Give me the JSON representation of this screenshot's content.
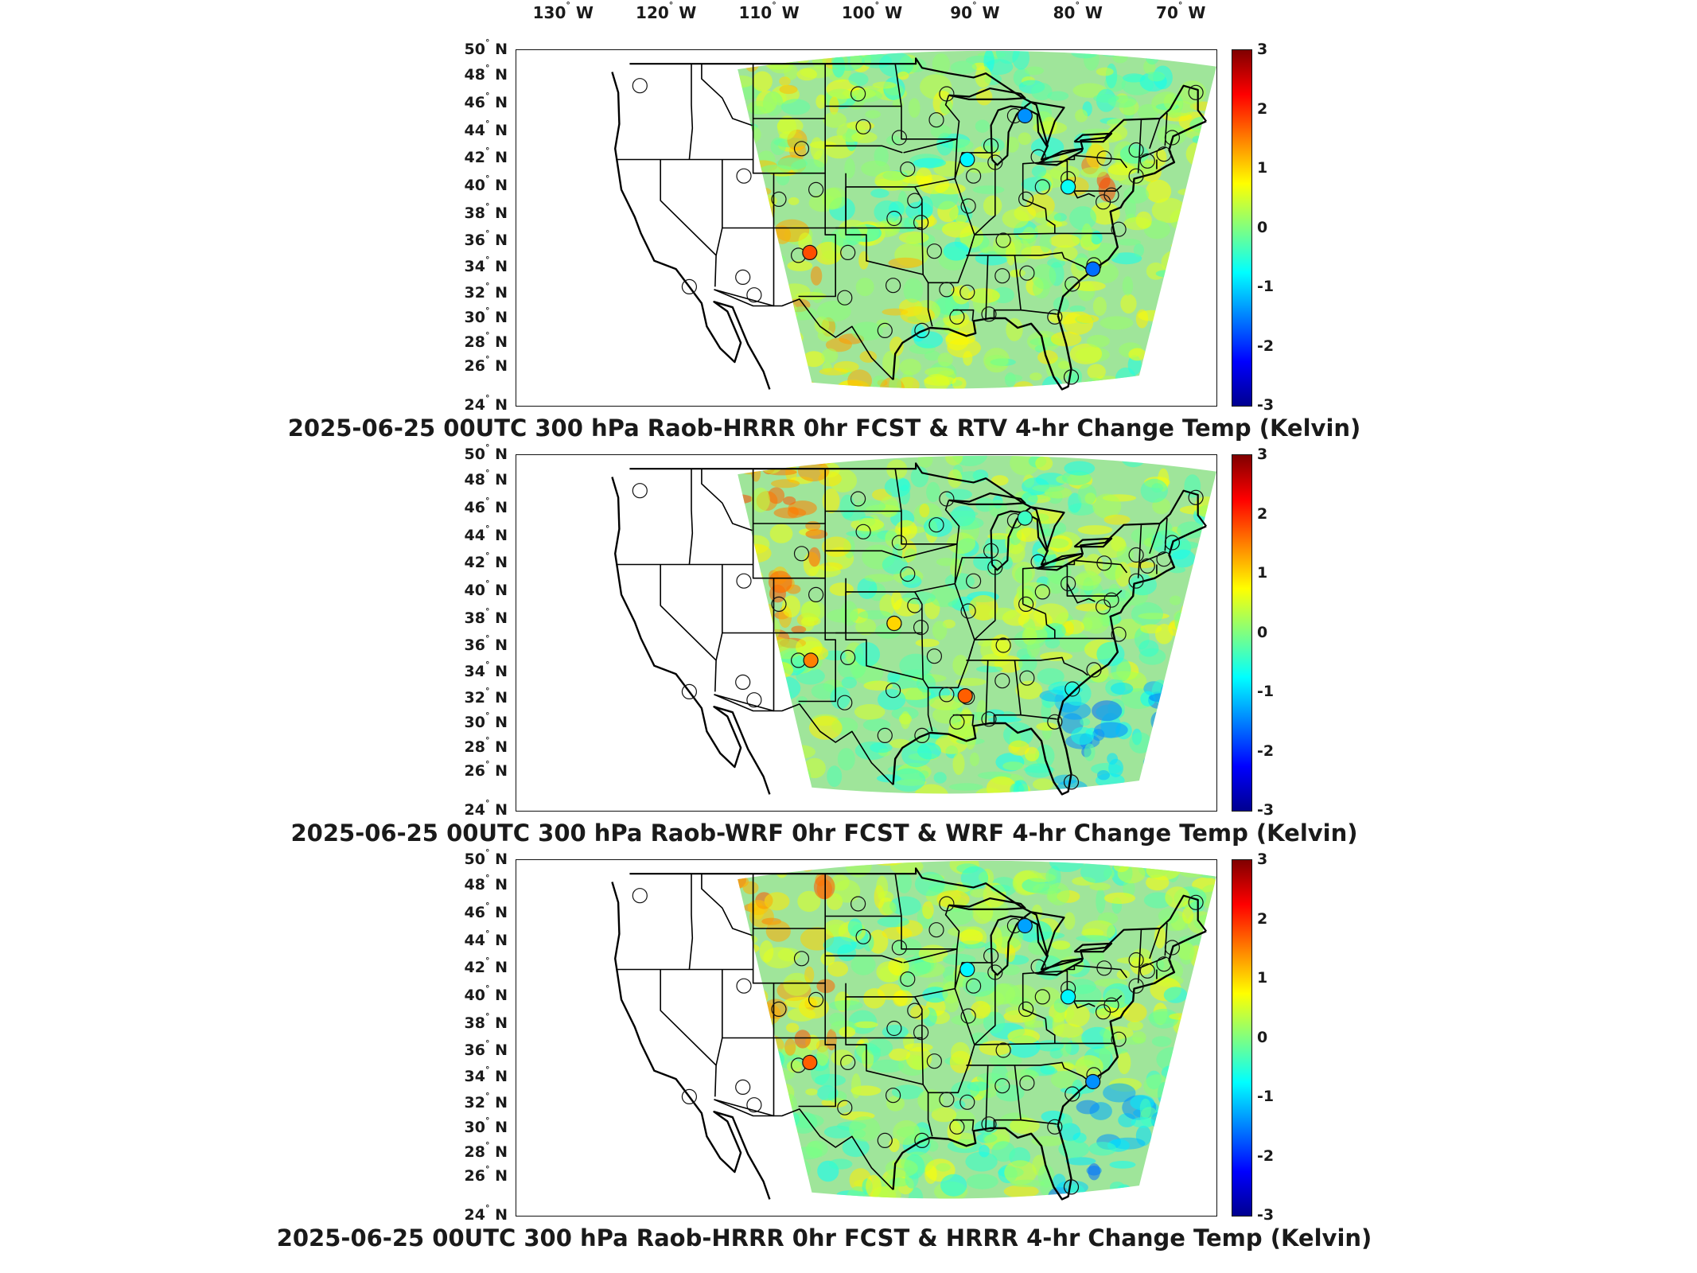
{
  "figure": {
    "longitude_labels": [
      "130° W",
      "120° W",
      "110° W",
      "100° W",
      "90° W",
      "80° W",
      "70° W"
    ],
    "latitude_labels": [
      "50° N",
      "48° N",
      "46° N",
      "44° N",
      "42° N",
      "40° N",
      "38° N",
      "36° N",
      "34° N",
      "32° N",
      "30° N",
      "28° N",
      "26° N",
      "24° N"
    ],
    "colorbar": {
      "ticks": [
        "3",
        "2",
        "1",
        "0",
        "-1",
        "-2",
        "-3"
      ],
      "range": [
        -3,
        3
      ],
      "colormap": [
        "#00008f",
        "#0000ff",
        "#0080ff",
        "#00ffff",
        "#80ff80",
        "#ffff00",
        "#ff8000",
        "#ff0000",
        "#800000"
      ]
    },
    "colors": {
      "background_field": "#9fe59a",
      "coast_and_borders": "#000000"
    },
    "panels": [
      {
        "title": "2025-06-25 00UTC 300 hPa Raob-HRRR 0hr FCST & RTV 4-hr Change Temp (Kelvin)",
        "station_markers": [
          {
            "lon": -84.6,
            "lat": 45.2,
            "value": -1.4
          },
          {
            "lon": -105.5,
            "lat": 35.2,
            "value": 1.8
          },
          {
            "lon": -78.0,
            "lat": 34.0,
            "value": -1.6
          },
          {
            "lon": -80.4,
            "lat": 40.0,
            "value": -0.7
          },
          {
            "lon": -90.2,
            "lat": 42.0,
            "value": -0.8
          }
        ]
      },
      {
        "title": "2025-06-25 00UTC 300 hPa Raob-WRF 0hr FCST & WRF 4-hr Change Temp (Kelvin)",
        "station_markers": [
          {
            "lon": -90.4,
            "lat": 32.4,
            "value": 1.7
          },
          {
            "lon": -105.4,
            "lat": 35.0,
            "value": 1.5
          },
          {
            "lon": -84.6,
            "lat": 45.4,
            "value": -0.4
          },
          {
            "lon": -97.3,
            "lat": 37.7,
            "value": 1.0
          }
        ]
      },
      {
        "title": "2025-06-25 00UTC 300 hPa Raob-HRRR 0hr FCST & HRRR 4-hr Change Temp (Kelvin)",
        "station_markers": [
          {
            "lon": -84.6,
            "lat": 45.2,
            "value": -1.3
          },
          {
            "lon": -105.5,
            "lat": 35.2,
            "value": 1.7
          },
          {
            "lon": -78.0,
            "lat": 33.8,
            "value": -1.4
          },
          {
            "lon": -80.4,
            "lat": 40.0,
            "value": -0.8
          },
          {
            "lon": -90.2,
            "lat": 42.0,
            "value": -0.8
          }
        ]
      }
    ]
  }
}
